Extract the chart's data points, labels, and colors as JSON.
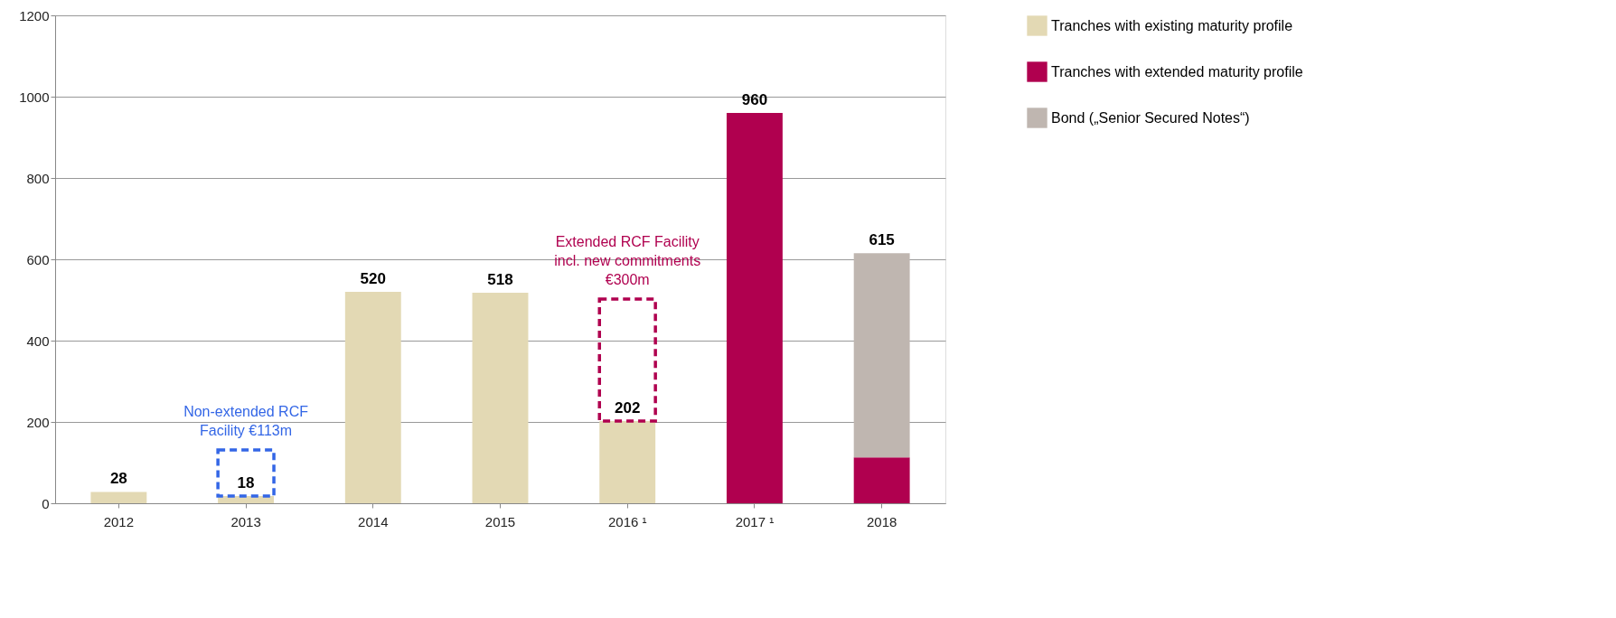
{
  "chart_data": {
    "type": "bar",
    "stacked": true,
    "categories": [
      "2012",
      "2013",
      "2014",
      "2015",
      "2016 ¹",
      "2017 ¹",
      "2018"
    ],
    "series": [
      {
        "name": "Tranches with existing maturity profile",
        "color": "#e3d9b4",
        "values": [
          28,
          18,
          520,
          518,
          202,
          null,
          null
        ],
        "value_labels": [
          "28",
          "18",
          "520",
          "518",
          "202",
          null,
          null
        ]
      },
      {
        "name": "Tranches with extended maturity profile",
        "color": "#b0004f",
        "values": [
          null,
          null,
          null,
          null,
          null,
          960,
          113
        ],
        "value_labels": [
          null,
          null,
          null,
          null,
          null,
          "960",
          null
        ]
      },
      {
        "name": "Bond („Senior Secured Notes“)",
        "color": "#bfb6b0",
        "values": [
          null,
          null,
          null,
          null,
          null,
          null,
          502
        ]
      },
      {
        "type": "bar",
        "line_style": "dashed",
        "colors": [
          null,
          "#3366e6",
          null,
          null,
          "#b0004f",
          null,
          null
        ],
        "base": [
          null,
          18,
          null,
          null,
          202,
          null,
          null
        ],
        "values": [
          null,
          113,
          null,
          null,
          300,
          null,
          null
        ]
      }
    ],
    "totals": [
      null,
      null,
      null,
      null,
      null,
      null,
      "615"
    ],
    "annotations": [
      {
        "text": "Non-extended  RCF\nFacility €113m",
        "x": "2013",
        "y": 131
      },
      {
        "text": "Extended RCF Facility\nincl. new commitments\n€300m",
        "x": "2016 ¹",
        "y": 502
      }
    ],
    "ylim": [
      0,
      1200
    ],
    "yticks": [
      0,
      200,
      400,
      600,
      800,
      1000,
      1200
    ],
    "grid": "y",
    "legend": "right"
  }
}
